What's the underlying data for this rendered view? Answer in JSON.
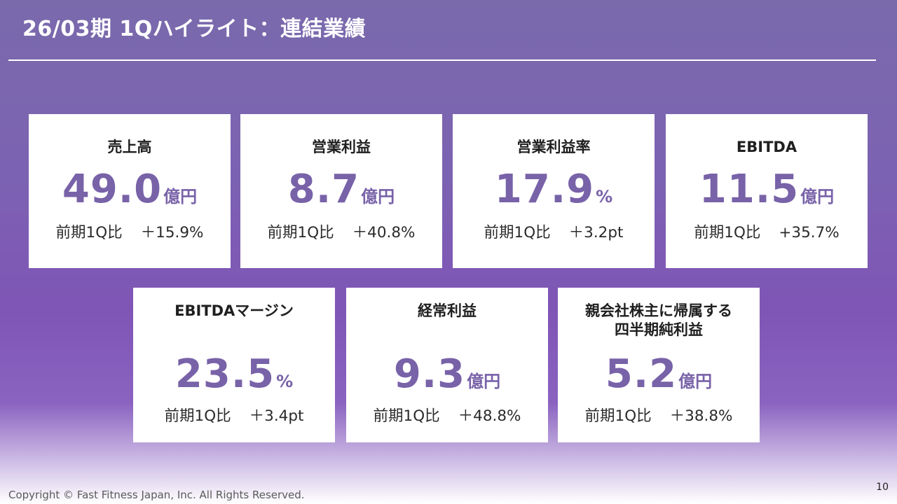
{
  "header": {
    "title": "26/03期 1Qハイライト：連結業績"
  },
  "cards": [
    {
      "label": "売上高",
      "value": "49.0",
      "unit": "億円",
      "compare_label": "前期1Q比",
      "compare_value": "＋15.9%"
    },
    {
      "label": "営業利益",
      "value": "8.7",
      "unit": "億円",
      "compare_label": "前期1Q比",
      "compare_value": "＋40.8%"
    },
    {
      "label": "営業利益率",
      "value": "17.9",
      "unit": "%",
      "compare_label": "前期1Q比",
      "compare_value": "＋3.2pt"
    },
    {
      "label": "EBITDA",
      "value": "11.5",
      "unit": "億円",
      "compare_label": "前期1Q比",
      "compare_value": "+35.7%"
    },
    {
      "label": "EBITDAマージン",
      "value": "23.5",
      "unit": "%",
      "compare_label": "前期1Q比",
      "compare_value": "＋3.4pt"
    },
    {
      "label": "経常利益",
      "value": "9.3",
      "unit": "億円",
      "compare_label": "前期1Q比",
      "compare_value": "＋48.8%"
    },
    {
      "label": "親会社株主に帰属する\n四半期純利益",
      "value": "5.2",
      "unit": "億円",
      "compare_label": "前期1Q比",
      "compare_value": "＋38.8%"
    }
  ],
  "footer": {
    "copyright": "Copyright © Fast Fitness Japan, Inc. All Rights Reserved.",
    "page_number": "10"
  },
  "colors": {
    "value_accent": "#7862a8",
    "background_top": "#7a6aac",
    "background_bottom": "#ffffff"
  }
}
